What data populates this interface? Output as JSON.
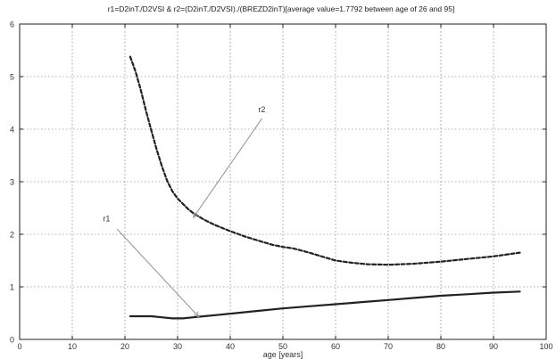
{
  "chart_data": {
    "type": "line",
    "title": "r1=D2inT./D2VSI & r2=(D2inT./D2VSI)./(BREZD2inT)[average value=1.7792 between age of 26 and 95]",
    "xlabel": "age [years]",
    "ylabel": "",
    "xlim": [
      0,
      100
    ],
    "ylim": [
      0,
      6
    ],
    "xticks": [
      "0",
      "10",
      "20",
      "30",
      "40",
      "50",
      "60",
      "70",
      "80",
      "90",
      "100"
    ],
    "yticks": [
      "0",
      "1",
      "2",
      "3",
      "4",
      "5",
      "6"
    ],
    "grid": true,
    "series": [
      {
        "name": "r1",
        "style": "solid",
        "color": "#222222",
        "x": [
          21,
          23,
          25,
          27,
          29,
          31,
          33,
          35,
          38,
          40,
          45,
          50,
          55,
          60,
          65,
          70,
          75,
          80,
          85,
          90,
          95
        ],
        "y": [
          0.44,
          0.44,
          0.44,
          0.42,
          0.4,
          0.4,
          0.42,
          0.44,
          0.47,
          0.49,
          0.54,
          0.59,
          0.63,
          0.67,
          0.71,
          0.75,
          0.79,
          0.83,
          0.86,
          0.89,
          0.91
        ]
      },
      {
        "name": "r2",
        "style": "dashed",
        "color": "#222222",
        "x": [
          21,
          22,
          23,
          24,
          25,
          26,
          27,
          28,
          29,
          30,
          31,
          32,
          33,
          34,
          35,
          37,
          40,
          43,
          46,
          48,
          50,
          52,
          55,
          58,
          60,
          63,
          66,
          70,
          75,
          80,
          85,
          90,
          95
        ],
        "y": [
          5.38,
          5.1,
          4.75,
          4.35,
          3.98,
          3.62,
          3.3,
          3.02,
          2.82,
          2.68,
          2.58,
          2.48,
          2.4,
          2.34,
          2.28,
          2.18,
          2.06,
          1.95,
          1.86,
          1.8,
          1.76,
          1.73,
          1.65,
          1.56,
          1.5,
          1.46,
          1.43,
          1.42,
          1.44,
          1.48,
          1.53,
          1.58,
          1.65
        ]
      }
    ],
    "annotations": [
      {
        "text": "r1",
        "label_at": [
          16.5,
          2.25
        ],
        "arrow_from": [
          18.5,
          2.1
        ],
        "arrow_to": [
          34,
          0.43
        ]
      },
      {
        "text": "r2",
        "label_at": [
          46,
          4.32
        ],
        "arrow_from": [
          46,
          4.2
        ],
        "arrow_to": [
          33,
          2.32
        ]
      }
    ]
  }
}
